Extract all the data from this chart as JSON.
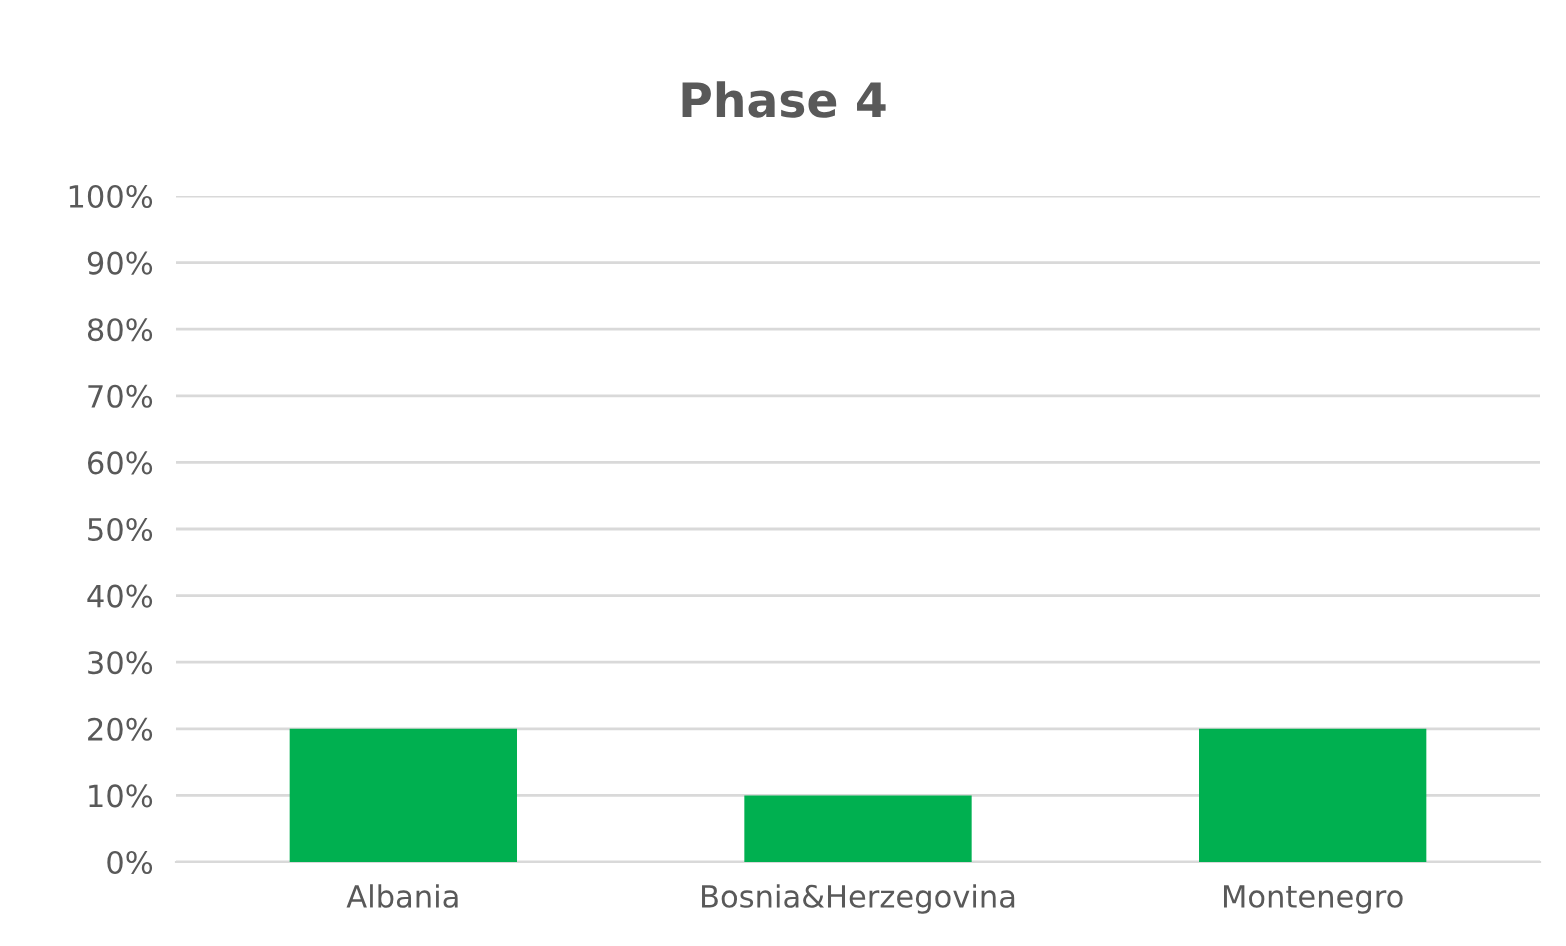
{
  "chart_data": {
    "type": "bar",
    "title": "Phase 4",
    "categories": [
      "Albania",
      "Bosnia&Herzegovina",
      "Montenegro"
    ],
    "values": [
      20,
      10,
      20
    ],
    "color": "#00b050",
    "ylim": [
      0,
      100
    ],
    "yticks": [
      {
        "value": 0,
        "label": "0%"
      },
      {
        "value": 10,
        "label": "10%"
      },
      {
        "value": 20,
        "label": "20%"
      },
      {
        "value": 30,
        "label": "30%"
      },
      {
        "value": 40,
        "label": "40%"
      },
      {
        "value": 50,
        "label": "50%"
      },
      {
        "value": 60,
        "label": "60%"
      },
      {
        "value": 70,
        "label": "70%"
      },
      {
        "value": 80,
        "label": "80%"
      },
      {
        "value": 90,
        "label": "90%"
      },
      {
        "value": 100,
        "label": "100%"
      }
    ],
    "grid": "y",
    "legend": false
  }
}
